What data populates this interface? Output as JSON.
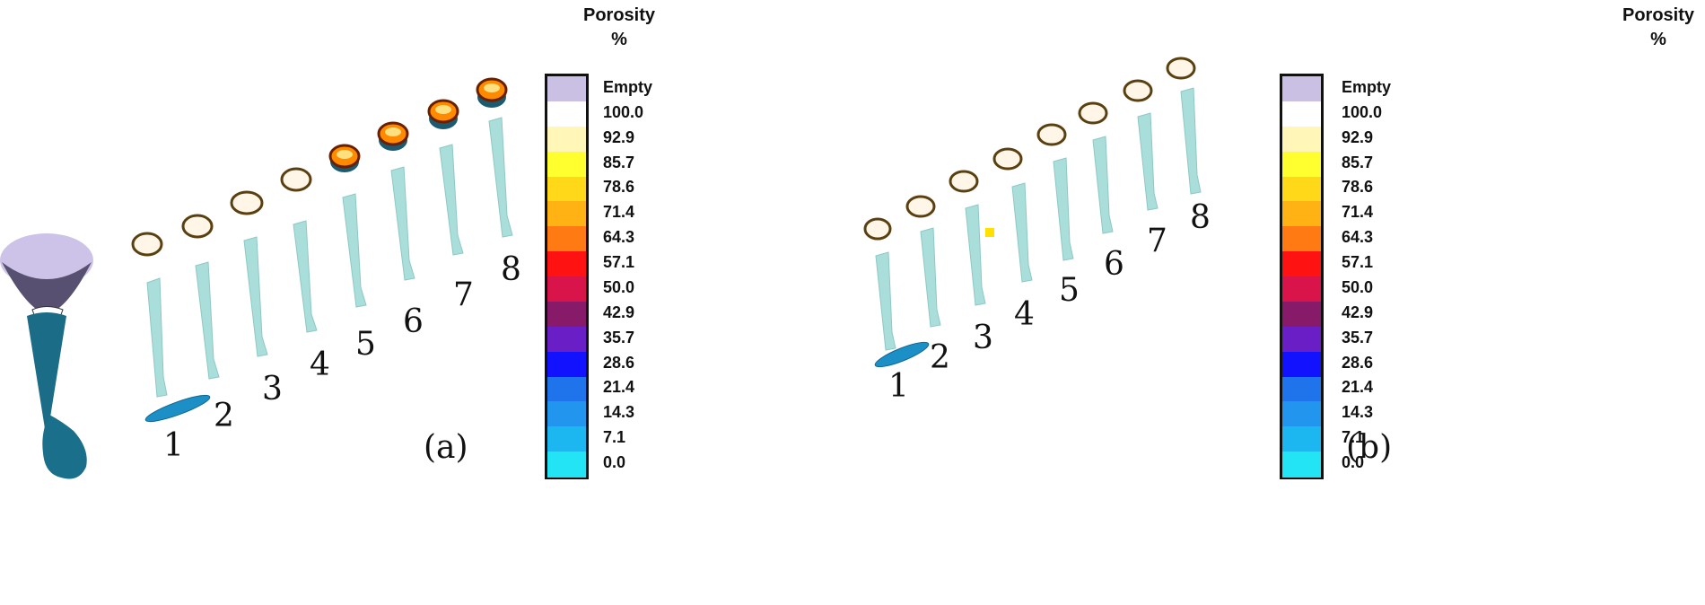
{
  "panels": [
    {
      "sub_label": "(a)",
      "legend_title_line1": "Porosity",
      "legend_title_line2": "%",
      "specimen_numbers": [
        "1",
        "2",
        "3",
        "4",
        "5",
        "6",
        "7",
        "8"
      ]
    },
    {
      "sub_label": "(b)",
      "legend_title_line1": "Porosity",
      "legend_title_line2": "%",
      "specimen_numbers": [
        "1",
        "2",
        "3",
        "4",
        "5",
        "6",
        "7",
        "8"
      ]
    }
  ],
  "legend": {
    "empty_label": "Empty",
    "empty_color": "#c9c0e4",
    "levels": [
      {
        "label": "100.0",
        "color": "#ffffff"
      },
      {
        "label": "92.9",
        "color": "#fff6b8"
      },
      {
        "label": "85.7",
        "color": "#ffff30"
      },
      {
        "label": "78.6",
        "color": "#ffd81a"
      },
      {
        "label": "71.4",
        "color": "#ffb214"
      },
      {
        "label": "64.3",
        "color": "#ff7a12"
      },
      {
        "label": "57.1",
        "color": "#ff1212"
      },
      {
        "label": "50.0",
        "color": "#d8144a"
      },
      {
        "label": "42.9",
        "color": "#881a6a"
      },
      {
        "label": "35.7",
        "color": "#6a1ec6"
      },
      {
        "label": "28.6",
        "color": "#1212ff"
      },
      {
        "label": "21.4",
        "color": "#1f74ec"
      },
      {
        "label": "14.3",
        "color": "#2296ee"
      },
      {
        "label": "7.1",
        "color": "#1cb6f0"
      },
      {
        "label": "0.0",
        "color": "#22e4f4"
      }
    ]
  },
  "colors": {
    "rod": "#a9dedb",
    "rod_edge": "#8ec8c4",
    "defect": "#1c90c6",
    "lump": "#1a6f8a",
    "cone_top": "#cdc3e8",
    "cone_side": "#585070"
  }
}
